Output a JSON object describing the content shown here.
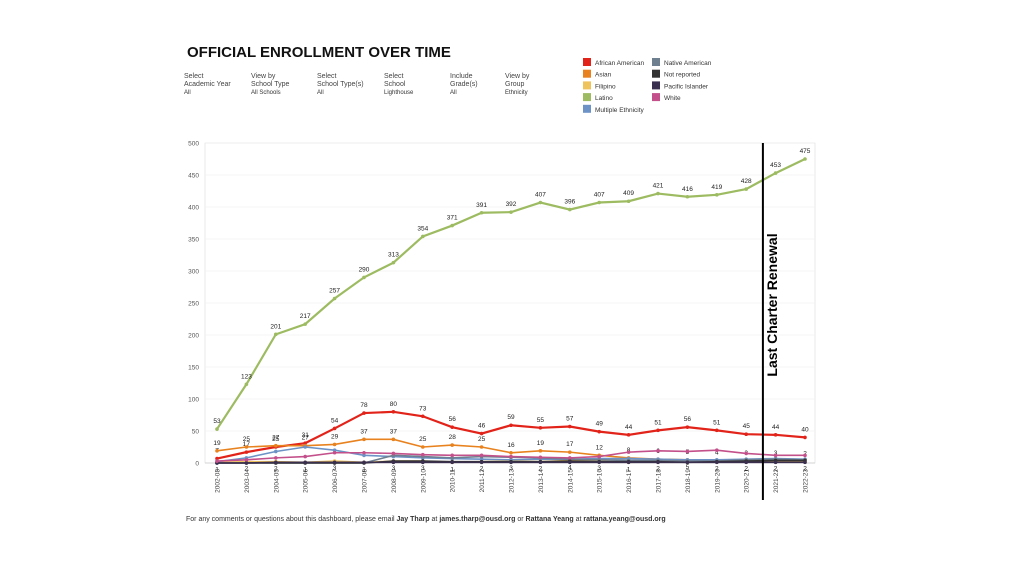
{
  "chart_data": {
    "type": "line",
    "title": "OFFICIAL ENROLLMENT OVER TIME",
    "filters": [
      {
        "label": [
          "Select",
          "Academic Year"
        ],
        "value": "All"
      },
      {
        "label": [
          "View by",
          "School Type"
        ],
        "value": "All Schools"
      },
      {
        "label": [
          "Select",
          "School Type(s)"
        ],
        "value": "All"
      },
      {
        "label": [
          "Select",
          "School"
        ],
        "value": "Lighthouse"
      },
      {
        "label": [
          "Include",
          "Grade(s)"
        ],
        "value": "All"
      },
      {
        "label": [
          "View by",
          "Group"
        ],
        "value": "Ethnicity"
      }
    ],
    "categories": [
      "2002-03",
      "2003-04",
      "2004-05",
      "2005-06",
      "2006-07",
      "2007-08",
      "2008-09",
      "2009-10",
      "2010-11",
      "2011-12",
      "2012-13",
      "2013-14",
      "2014-15",
      "2015-16",
      "2016-17",
      "2017-18",
      "2018-19",
      "2019-20",
      "2020-21",
      "2021-22",
      "2022-23"
    ],
    "ylim": [
      0,
      500
    ],
    "yticks": [
      0,
      50,
      100,
      150,
      200,
      250,
      300,
      350,
      400,
      450,
      500
    ],
    "grid": true,
    "series": [
      {
        "name": "African American",
        "color": "#e2231a",
        "show_labels": true,
        "label_position": "above",
        "values": [
          7,
          17,
          25,
          31,
          54,
          78,
          80,
          73,
          56,
          46,
          59,
          55,
          57,
          49,
          44,
          51,
          56,
          51,
          45,
          44,
          40
        ]
      },
      {
        "name": "Asian",
        "color": "#e8821e",
        "show_labels": true,
        "label_position": "above",
        "values": [
          19,
          25,
          27,
          27,
          29,
          37,
          37,
          25,
          28,
          25,
          16,
          19,
          17,
          12,
          8,
          6,
          5,
          4,
          3,
          3,
          2
        ]
      },
      {
        "name": "Filipino",
        "color": "#efc35b",
        "show_labels": true,
        "label_position": "below",
        "values": [
          1,
          2,
          2,
          1,
          3,
          1,
          3,
          3,
          1,
          2,
          3,
          2,
          4,
          3,
          1,
          2,
          5,
          2,
          2,
          2,
          2
        ]
      },
      {
        "name": "Latino",
        "color": "#9dbb61",
        "show_labels": true,
        "label_position": "above",
        "values": [
          53,
          123,
          201,
          217,
          257,
          290,
          313,
          354,
          371,
          391,
          392,
          407,
          396,
          407,
          409,
          421,
          416,
          419,
          428,
          453,
          475
        ]
      },
      {
        "name": "Multiple Ethnicity",
        "color": "#6d93c6",
        "show_labels": false,
        "label_position": "above",
        "values": [
          2,
          8,
          18,
          25,
          20,
          12,
          10,
          8,
          7,
          6,
          5,
          6,
          6,
          7,
          7,
          6,
          5,
          5,
          6,
          7,
          6
        ]
      },
      {
        "name": "Native American",
        "color": "#6e7f8f",
        "show_labels": false,
        "label_position": "above",
        "values": [
          0,
          0,
          0,
          0,
          0,
          0,
          12,
          10,
          8,
          10,
          9,
          8,
          6,
          5,
          4,
          4,
          3,
          3,
          5,
          6,
          5
        ]
      },
      {
        "name": "Not reported",
        "color": "#333333",
        "show_labels": false,
        "label_position": "above",
        "values": [
          0,
          0,
          0,
          0,
          0,
          0,
          3,
          3,
          2,
          2,
          2,
          2,
          3,
          2,
          2,
          2,
          1,
          2,
          3,
          4,
          4
        ]
      },
      {
        "name": "Pacific Islander",
        "color": "#3b2f4f",
        "show_labels": false,
        "label_position": "above",
        "values": [
          0,
          0,
          1,
          1,
          1,
          1,
          1,
          1,
          1,
          1,
          1,
          1,
          1,
          1,
          1,
          1,
          1,
          1,
          1,
          1,
          1
        ]
      },
      {
        "name": "White",
        "color": "#c3508a",
        "show_labels": false,
        "label_position": "above",
        "values": [
          3,
          5,
          8,
          10,
          16,
          16,
          15,
          13,
          12,
          12,
          10,
          9,
          8,
          10,
          17,
          19,
          18,
          20,
          15,
          12,
          12
        ]
      }
    ],
    "annotation": "Last Charter Renewal",
    "footer": [
      {
        "text": "For any comments or questions about this dashboard, please email ",
        "bold": false
      },
      {
        "text": "Jay Tharp",
        "bold": true
      },
      {
        "text": " at ",
        "bold": false
      },
      {
        "text": "james.tharp@ousd.org",
        "bold": true
      },
      {
        "text": " or ",
        "bold": false
      },
      {
        "text": "Rattana Yeang",
        "bold": true
      },
      {
        "text": " at ",
        "bold": false
      },
      {
        "text": "rattana.yeang@ousd.org",
        "bold": true
      }
    ]
  }
}
